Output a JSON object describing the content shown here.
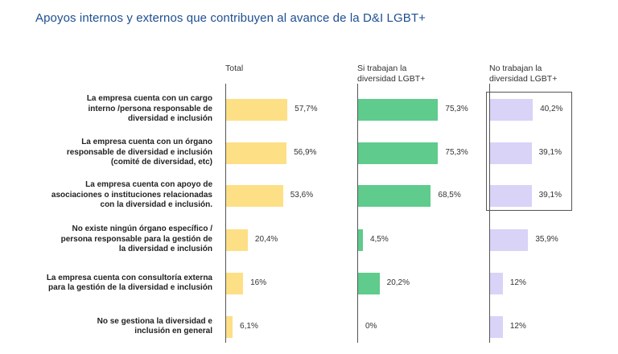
{
  "title": "Apoyos internos y externos que contribuyen al avance de la D&I LGBT+",
  "colors": {
    "title": "#1d4f91",
    "total": "#fddf86",
    "si": "#5fcb8c",
    "no": "#d9d3f7"
  },
  "chart_data": {
    "type": "bar",
    "orientation": "horizontal",
    "categories": [
      "La empresa cuenta con un cargo\ninterno /persona responsable de\ndiversidad e inclusión",
      "La empresa cuenta con un órgano\nresponsable de diversidad e inclusión\n(comité de diversidad, etc)",
      "La empresa cuenta con apoyo de\nasociaciones o instituciones relacionadas\ncon la diversidad e inclusión.",
      "No existe ningún órgano específico /\npersona responsable para la gestión de\nla diversidad e inclusión",
      "La empresa cuenta con consultoría externa\npara la gestión de la diversidad e inclusión",
      "No se gestiona la diversidad e\ninclusión en general"
    ],
    "series": [
      {
        "name": "Total",
        "values": [
          57.7,
          56.9,
          53.6,
          20.4,
          16,
          6.1
        ],
        "labels": [
          "57,7%",
          "56,9%",
          "53,6%",
          "20,4%",
          "16%",
          "6,1%"
        ]
      },
      {
        "name": "Si trabajan la\ndiversidad LGBT+",
        "values": [
          75.3,
          75.3,
          68.5,
          4.5,
          20.2,
          0
        ],
        "labels": [
          "75,3%",
          "75,3%",
          "68,5%",
          "4,5%",
          "20,2%",
          "0%"
        ]
      },
      {
        "name": "No trabajan la\ndiversidad LGBT+",
        "values": [
          40.2,
          39.1,
          39.1,
          35.9,
          12,
          12
        ],
        "labels": [
          "40,2%",
          "39,1%",
          "39,1%",
          "35,9%",
          "12%",
          "12%"
        ]
      }
    ],
    "xlim": [
      0,
      100
    ],
    "grid": false,
    "highlight": {
      "series": 2,
      "rows": [
        0,
        1,
        2
      ]
    }
  }
}
